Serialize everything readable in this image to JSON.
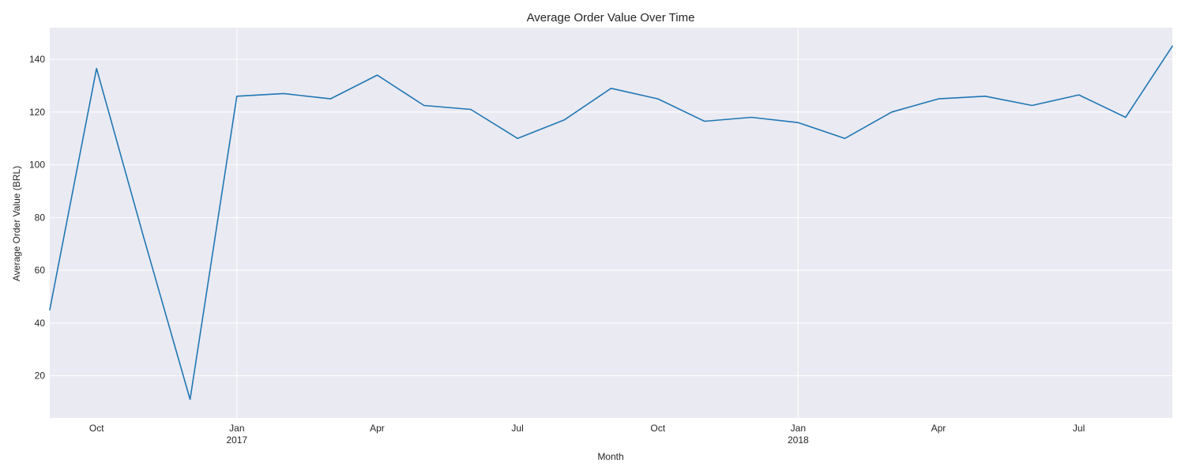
{
  "chart_data": {
    "type": "line",
    "title": "Average Order Value Over Time",
    "xlabel": "Month",
    "ylabel": "Average Order Value (BRL)",
    "x": [
      "2016-09",
      "2016-10",
      "2016-11",
      "2016-12",
      "2017-01",
      "2017-02",
      "2017-03",
      "2017-04",
      "2017-05",
      "2017-06",
      "2017-07",
      "2017-08",
      "2017-09",
      "2017-10",
      "2017-11",
      "2017-12",
      "2018-01",
      "2018-02",
      "2018-03",
      "2018-04",
      "2018-05",
      "2018-06",
      "2018-07",
      "2018-08",
      "2018-09"
    ],
    "series": [
      {
        "values": [
          45,
          136.5,
          73,
          11,
          126,
          127,
          125,
          134,
          122.5,
          121,
          110,
          117,
          129,
          125,
          116.5,
          118,
          116,
          110,
          120,
          125,
          126,
          122.5,
          126.5,
          118,
          145
        ],
        "color": "#1f77b4"
      }
    ],
    "xlim": [
      "2016-09",
      "2018-09"
    ],
    "ylim": [
      4,
      152
    ],
    "y_ticks": [
      20,
      40,
      60,
      80,
      100,
      120,
      140
    ],
    "x_ticks": [
      {
        "x": "2016-10",
        "label": "Oct",
        "sublabel": ""
      },
      {
        "x": "2017-01",
        "label": "Jan",
        "sublabel": "2017"
      },
      {
        "x": "2017-04",
        "label": "Apr",
        "sublabel": ""
      },
      {
        "x": "2017-07",
        "label": "Jul",
        "sublabel": ""
      },
      {
        "x": "2017-10",
        "label": "Oct",
        "sublabel": ""
      },
      {
        "x": "2018-01",
        "label": "Jan",
        "sublabel": "2018"
      },
      {
        "x": "2018-04",
        "label": "Apr",
        "sublabel": ""
      },
      {
        "x": "2018-07",
        "label": "Jul",
        "sublabel": ""
      }
    ],
    "major_gridlines_x": [
      "2017-01",
      "2018-01"
    ],
    "grid": true,
    "plot_background": "#eaeaf2",
    "legend": "none"
  }
}
